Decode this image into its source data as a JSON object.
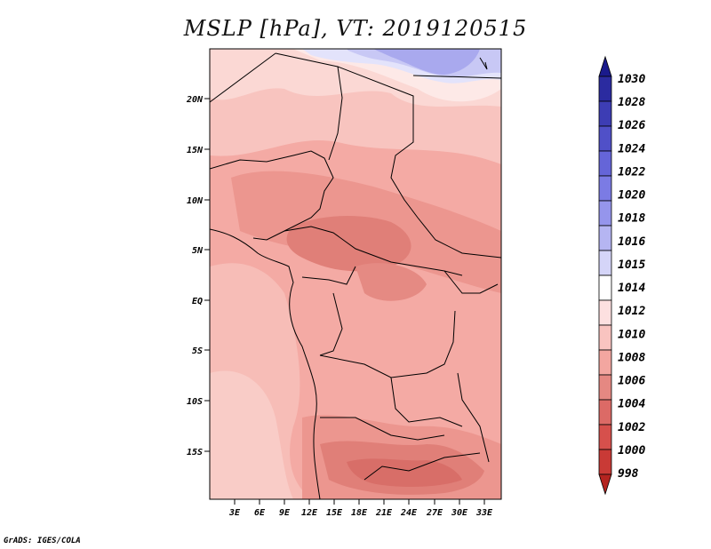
{
  "title": "MSLP [hPa], VT: 2019120515",
  "credit": "GrADS: IGES/COLA",
  "axes": {
    "lon_ticks": [
      "3E",
      "6E",
      "9E",
      "12E",
      "15E",
      "18E",
      "21E",
      "24E",
      "27E",
      "30E",
      "33E"
    ],
    "lat_ticks": [
      "20N",
      "15N",
      "10N",
      "5N",
      "EQ",
      "5S",
      "10S",
      "15S"
    ]
  },
  "colorbar": {
    "levels": [
      "1030",
      "1028",
      "1026",
      "1024",
      "1022",
      "1020",
      "1018",
      "1016",
      "1015",
      "1014",
      "1012",
      "1010",
      "1008",
      "1006",
      "1004",
      "1002",
      "1000",
      "998"
    ],
    "colors": [
      "#1a1a8c",
      "#2b2ba0",
      "#3d3db4",
      "#5050c8",
      "#6565d8",
      "#7b7be4",
      "#9595ec",
      "#b5b5f2",
      "#d5d5f8",
      "#ffffff",
      "#fde0e0",
      "#f9c4c0",
      "#f3a6a0",
      "#e58882",
      "#dc6a66",
      "#d6504c",
      "#c93a36",
      "#b42420"
    ]
  },
  "map": {
    "variable": "Mean sea level pressure",
    "units": "hPa",
    "valid_time": "2019120515",
    "lon_range": [
      0,
      35
    ],
    "lat_range": [
      -20,
      24
    ]
  }
}
